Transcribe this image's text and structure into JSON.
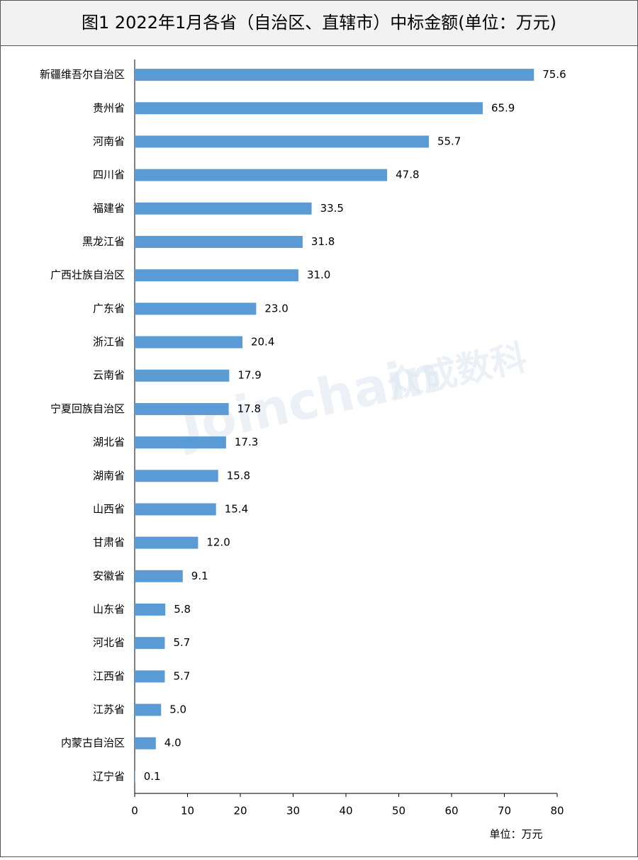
{
  "chart_data": {
    "type": "hbar",
    "title": "图1  2022年1月各省（自治区、直辖市）中标金额(单位：万元)",
    "categories": [
      "新疆维吾尔自治区",
      "贵州省",
      "河南省",
      "四川省",
      "福建省",
      "黑龙江省",
      "广西壮族自治区",
      "广东省",
      "浙江省",
      "云南省",
      "宁夏回族自治区",
      "湖北省",
      "湖南省",
      "山西省",
      "甘肃省",
      "安徽省",
      "山东省",
      "河北省",
      "江西省",
      "江苏省",
      "内蒙古自治区",
      "辽宁省"
    ],
    "values": [
      75.6,
      65.9,
      55.7,
      47.8,
      33.5,
      31.8,
      31.0,
      23.0,
      20.4,
      17.9,
      17.8,
      17.3,
      15.8,
      15.4,
      12.0,
      9.1,
      5.8,
      5.7,
      5.7,
      5.0,
      4.0,
      0.1
    ],
    "value_labels": [
      "75.6",
      "65.9",
      "55.7",
      "47.8",
      "33.5",
      "31.8",
      "31.0",
      "23.0",
      "20.4",
      "17.9",
      "17.8",
      "17.3",
      "15.8",
      "15.4",
      "12.0",
      "9.1",
      "5.8",
      "5.7",
      "5.7",
      "5.0",
      "4.0",
      "0.1"
    ],
    "color": "#5b9bd5",
    "xlim": [
      0,
      80
    ],
    "xticks": [
      0,
      10,
      20,
      30,
      40,
      50,
      60,
      70,
      80
    ],
    "x_label": "单位：万元",
    "watermark": "Joinchain",
    "watermark_cn": "众成数科"
  }
}
